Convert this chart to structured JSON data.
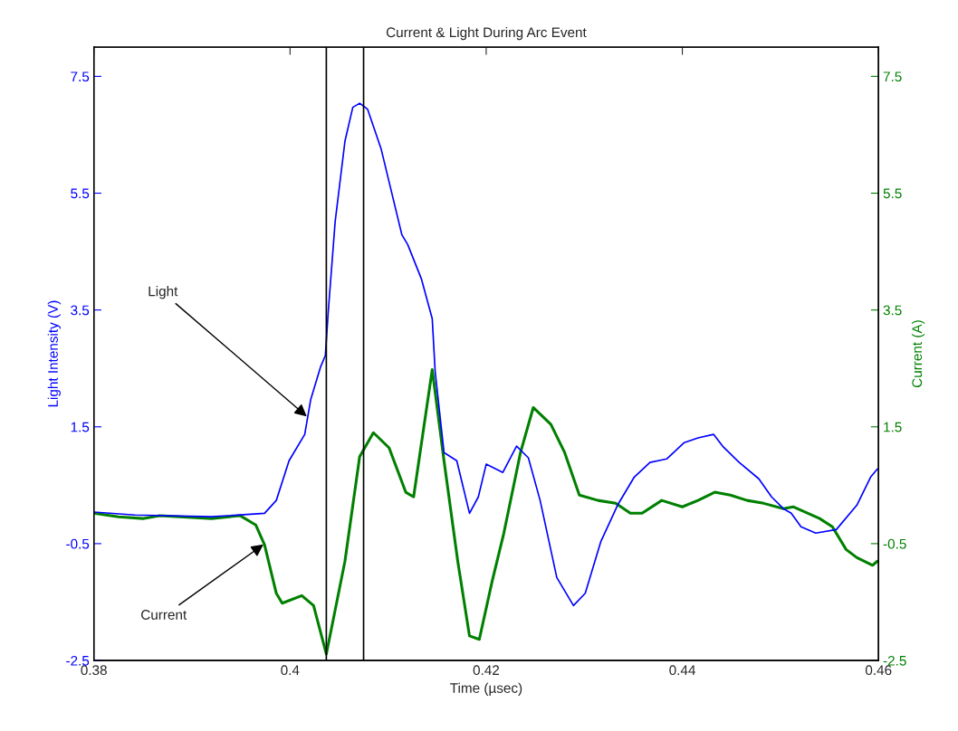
{
  "chart_data": {
    "type": "line",
    "title": "Current & Light During Arc Event",
    "xlabel": "Time (µsec)",
    "ylabel": "Light Intensity (V)",
    "y2label": "Current (A)",
    "xlim": [
      0.38,
      0.46
    ],
    "xticks": [
      0.38,
      0.4,
      0.42,
      0.44,
      0.46
    ],
    "ylim": [
      -2.5,
      8
    ],
    "yticks": [
      -2.5,
      -0.5,
      1.5,
      3.5,
      5.5,
      7.5
    ],
    "y2lim": [
      -2.5,
      8
    ],
    "y2ticks": [
      -2.5,
      -0.5,
      1.5,
      3.5,
      5.5,
      7.5
    ],
    "grid": false,
    "series": [
      {
        "color": "#0000ff",
        "x": [
          0.38,
          0.3842,
          0.392,
          0.3974,
          0.3986,
          0.3999,
          0.4015,
          0.4021,
          0.4031,
          0.4036,
          0.4039,
          0.4046,
          0.4056,
          0.4064,
          0.4071,
          0.4079,
          0.4093,
          0.4114,
          0.412,
          0.4134,
          0.4145,
          0.4148,
          0.4157,
          0.417,
          0.4183,
          0.4192,
          0.42,
          0.4217,
          0.4231,
          0.4243,
          0.4255,
          0.4272,
          0.4289,
          0.4301,
          0.4317,
          0.4334,
          0.4351,
          0.4367,
          0.4384,
          0.4402,
          0.4416,
          0.4432,
          0.4441,
          0.4458,
          0.4478,
          0.4491,
          0.4503,
          0.4511,
          0.4521,
          0.4536,
          0.4557,
          0.4578,
          0.4592,
          0.4599
        ],
        "values": [
          0.04,
          -0.01,
          -0.04,
          0.02,
          0.24,
          0.92,
          1.37,
          1.96,
          2.52,
          2.72,
          3.48,
          5.01,
          6.39,
          6.97,
          7.04,
          6.94,
          6.25,
          4.79,
          4.62,
          4.03,
          3.35,
          2.44,
          1.06,
          0.92,
          0.02,
          0.3,
          0.86,
          0.72,
          1.17,
          0.97,
          0.24,
          -1.08,
          -1.56,
          -1.35,
          -0.46,
          0.16,
          0.64,
          0.89,
          0.95,
          1.23,
          1.31,
          1.37,
          1.17,
          0.89,
          0.61,
          0.3,
          0.1,
          0.02,
          -0.21,
          -0.32,
          -0.26,
          0.16,
          0.64,
          0.78
        ]
      },
      {
        "color": "#008000",
        "axis": "y2",
        "x": [
          0.38,
          0.3825,
          0.385,
          0.3867,
          0.392,
          0.3949,
          0.3965,
          0.3974,
          0.3986,
          0.3992,
          0.4012,
          0.4024,
          0.4037,
          0.4056,
          0.4071,
          0.4085,
          0.4101,
          0.4118,
          0.4126,
          0.4145,
          0.4157,
          0.4171,
          0.4183,
          0.4193,
          0.4206,
          0.4218,
          0.4235,
          0.4248,
          0.4266,
          0.428,
          0.4295,
          0.4314,
          0.4332,
          0.4347,
          0.4359,
          0.4379,
          0.44,
          0.4416,
          0.4433,
          0.4449,
          0.4466,
          0.4483,
          0.4503,
          0.4513,
          0.454,
          0.4553,
          0.4567,
          0.4578,
          0.4594,
          0.4599
        ],
        "values": [
          0.02,
          -0.04,
          -0.07,
          -0.02,
          -0.07,
          -0.02,
          -0.18,
          -0.52,
          -1.35,
          -1.52,
          -1.39,
          -1.56,
          -2.39,
          -0.8,
          0.99,
          1.4,
          1.14,
          0.38,
          0.3,
          2.48,
          0.92,
          -0.8,
          -2.08,
          -2.14,
          -1.15,
          -0.32,
          1.06,
          1.83,
          1.54,
          1.06,
          0.33,
          0.24,
          0.19,
          0.02,
          0.02,
          0.24,
          0.13,
          0.24,
          0.38,
          0.33,
          0.24,
          0.19,
          0.1,
          0.13,
          -0.07,
          -0.21,
          -0.6,
          -0.74,
          -0.87,
          -0.8
        ]
      }
    ],
    "ref_lines": [
      {
        "axis": "x",
        "value": 0.4037,
        "color": "#000000"
      },
      {
        "axis": "x",
        "value": 0.4075,
        "color": "#000000"
      }
    ],
    "annotations": [
      {
        "text": "Light",
        "x": 0.4019,
        "y": 1.65
      },
      {
        "text": "Current",
        "x": 0.3975,
        "y": -0.49
      }
    ]
  }
}
